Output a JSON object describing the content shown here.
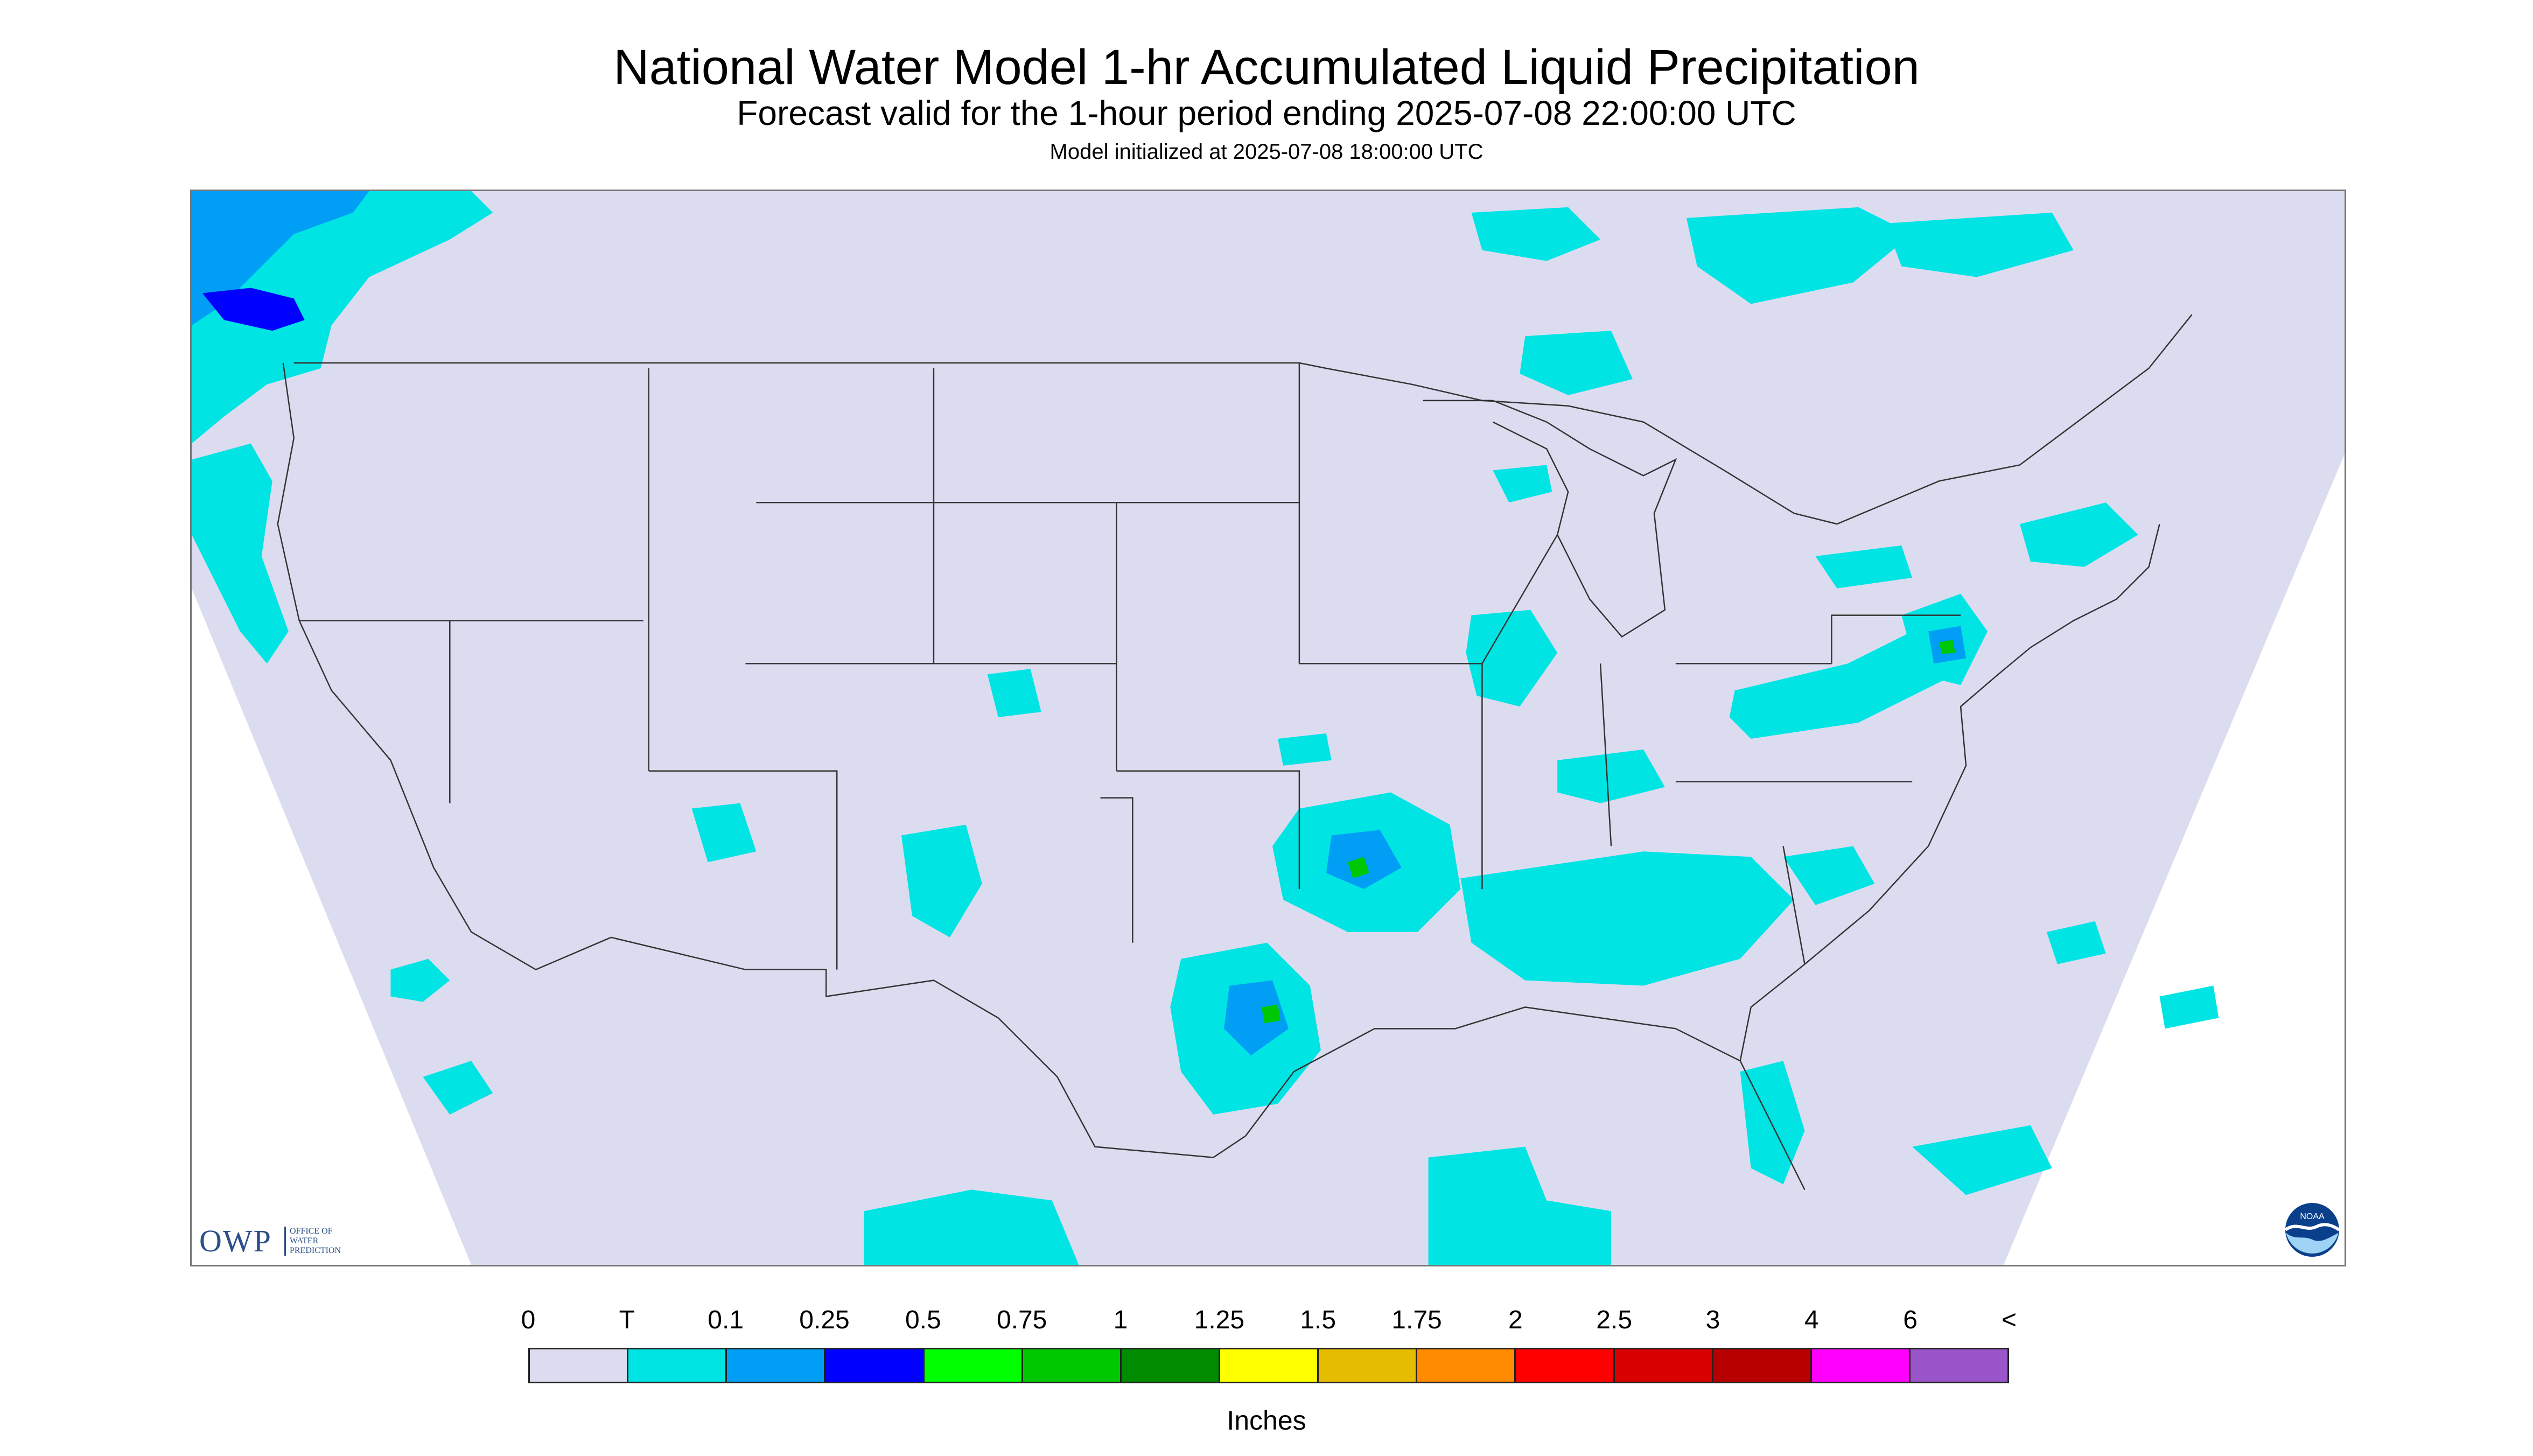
{
  "title": "National Water Model 1-hr Accumulated Liquid Precipitation",
  "subtitle": "Forecast valid for the 1-hour period ending 2025-07-08 22:00:00 UTC",
  "init_text": "Model initialized at 2025-07-08 18:00:00 UTC",
  "logo": {
    "owp_mark": "OWP",
    "owp_line1": "OFFICE OF",
    "owp_line2": "WATER",
    "owp_line3": "PREDICTION",
    "noaa_text": "NOAA"
  },
  "legend": {
    "units": "Inches",
    "labels": [
      "0",
      "T",
      "0.1",
      "0.25",
      "0.5",
      "0.75",
      "1",
      "1.25",
      "1.5",
      "1.75",
      "2",
      "2.5",
      "3",
      "4",
      "6",
      "<"
    ],
    "colors": [
      "#dcdcf0",
      "#00e4e4",
      "#009ff5",
      "#0000ff",
      "#00ff00",
      "#00c800",
      "#008c00",
      "#ffff00",
      "#e6bc00",
      "#ff8c00",
      "#ff0000",
      "#d80000",
      "#b80000",
      "#ff00ff",
      "#9955c9"
    ]
  },
  "map_colors": {
    "background": "#dcdcf0",
    "trace": "#00e4e4",
    "light": "#009ff5",
    "moderate": "#0000ff",
    "heavy": "#00c800",
    "boundaries": "#333333"
  }
}
